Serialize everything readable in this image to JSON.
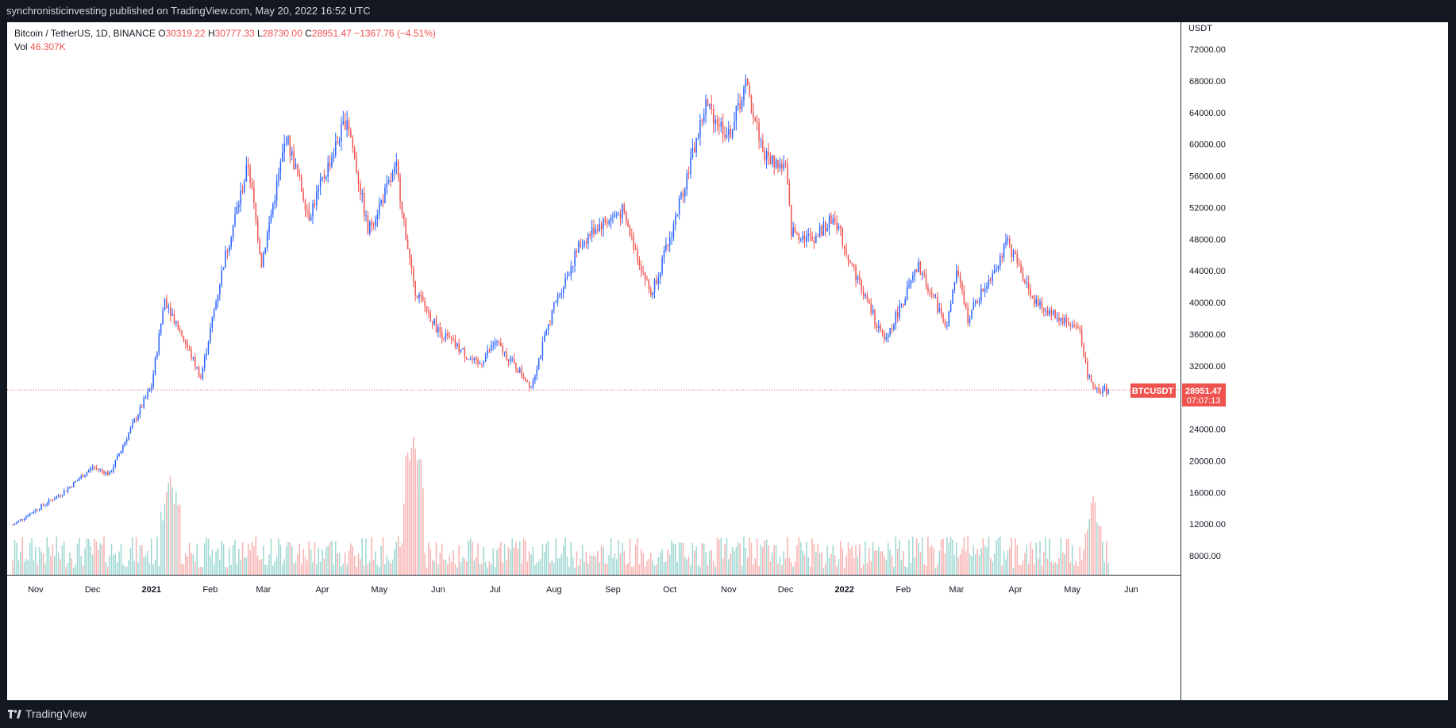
{
  "header": {
    "published": "synchronisticinvesting published on TradingView.com, May 20, 2022 16:52 UTC"
  },
  "legend": {
    "symbol": "Bitcoin / TetherUS, 1D, BINANCE",
    "o_label": "O",
    "o": "30319.22",
    "h_label": "H",
    "h": "30777.33",
    "l_label": "L",
    "l": "28730.00",
    "c_label": "C",
    "c": "28951.47",
    "change": "−1367.76 (−4.51%)",
    "vol_label": "Vol",
    "vol": "46.307K"
  },
  "price_axis": {
    "currency": "USDT",
    "last_price": "28951.47",
    "countdown": "07:07:13",
    "symbol_tag": "BTCUSDT"
  },
  "footer": {
    "brand": "TradingView"
  },
  "colors": {
    "up": "#2962ff",
    "down": "#ef5350",
    "vol_up": "#26a69a",
    "vol_down": "#ef5350",
    "background": "#131722"
  },
  "chart_data": {
    "type": "candlestick",
    "symbol": "BTCUSDT",
    "interval": "1D",
    "x_ticks": [
      "Nov",
      "Dec",
      "2021",
      "Feb",
      "Mar",
      "Apr",
      "May",
      "Jun",
      "Jul",
      "Aug",
      "Sep",
      "Oct",
      "Nov",
      "Dec",
      "2022",
      "Feb",
      "Mar",
      "Apr",
      "May",
      "Jun"
    ],
    "y_ticks": [
      8000,
      12000,
      16000,
      20000,
      24000,
      28000,
      32000,
      36000,
      40000,
      44000,
      48000,
      52000,
      56000,
      60000,
      64000,
      68000,
      72000
    ],
    "y_tick_labels": [
      "8000.00",
      "12000.00",
      "16000.00",
      "20000.00",
      "24000.00",
      "28000.00",
      "32000.00",
      "36000.00",
      "40000.00",
      "44000.00",
      "48000.00",
      "52000.00",
      "56000.00",
      "60000.00",
      "64000.00",
      "68000.00",
      "72000.00"
    ],
    "ylim": [
      5000,
      76000
    ],
    "close_series": {
      "name": "BTCUSDT close (approx.)",
      "dates": [
        "2020-10-20",
        "2020-11-01",
        "2020-11-15",
        "2020-12-01",
        "2020-12-10",
        "2020-12-20",
        "2021-01-01",
        "2021-01-08",
        "2021-01-15",
        "2021-01-27",
        "2021-02-08",
        "2021-02-21",
        "2021-02-28",
        "2021-03-13",
        "2021-03-25",
        "2021-04-14",
        "2021-04-25",
        "2021-05-10",
        "2021-05-19",
        "2021-06-01",
        "2021-06-22",
        "2021-07-01",
        "2021-07-20",
        "2021-08-01",
        "2021-08-14",
        "2021-08-23",
        "2021-09-06",
        "2021-09-21",
        "2021-10-01",
        "2021-10-20",
        "2021-11-01",
        "2021-11-10",
        "2021-11-20",
        "2021-12-01",
        "2021-12-04",
        "2021-12-15",
        "2021-12-27",
        "2022-01-01",
        "2022-01-10",
        "2022-01-22",
        "2022-02-09",
        "2022-02-24",
        "2022-03-01",
        "2022-03-07",
        "2022-03-28",
        "2022-04-12",
        "2022-05-05",
        "2022-05-09",
        "2022-05-12",
        "2022-05-20"
      ],
      "values": [
        11900,
        13800,
        15900,
        19200,
        18300,
        23500,
        29400,
        40500,
        37000,
        30500,
        45000,
        57500,
        45000,
        61000,
        51000,
        63500,
        49000,
        57000,
        42000,
        36500,
        32000,
        35000,
        29500,
        39500,
        47000,
        49500,
        51500,
        41000,
        48000,
        65000,
        61000,
        67500,
        58500,
        57000,
        49000,
        48000,
        50800,
        47000,
        41800,
        35000,
        44500,
        37000,
        44000,
        38000,
        47500,
        39800,
        36500,
        31000,
        29000,
        28951
      ]
    },
    "volume": {
      "unit": "USDT price axis scale (approx. display units)",
      "notable_peaks": [
        {
          "date": "2021-05-19",
          "value": 23000
        },
        {
          "date": "2021-01-11",
          "value": 18000
        },
        {
          "date": "2022-05-12",
          "value": 15500
        }
      ]
    }
  }
}
